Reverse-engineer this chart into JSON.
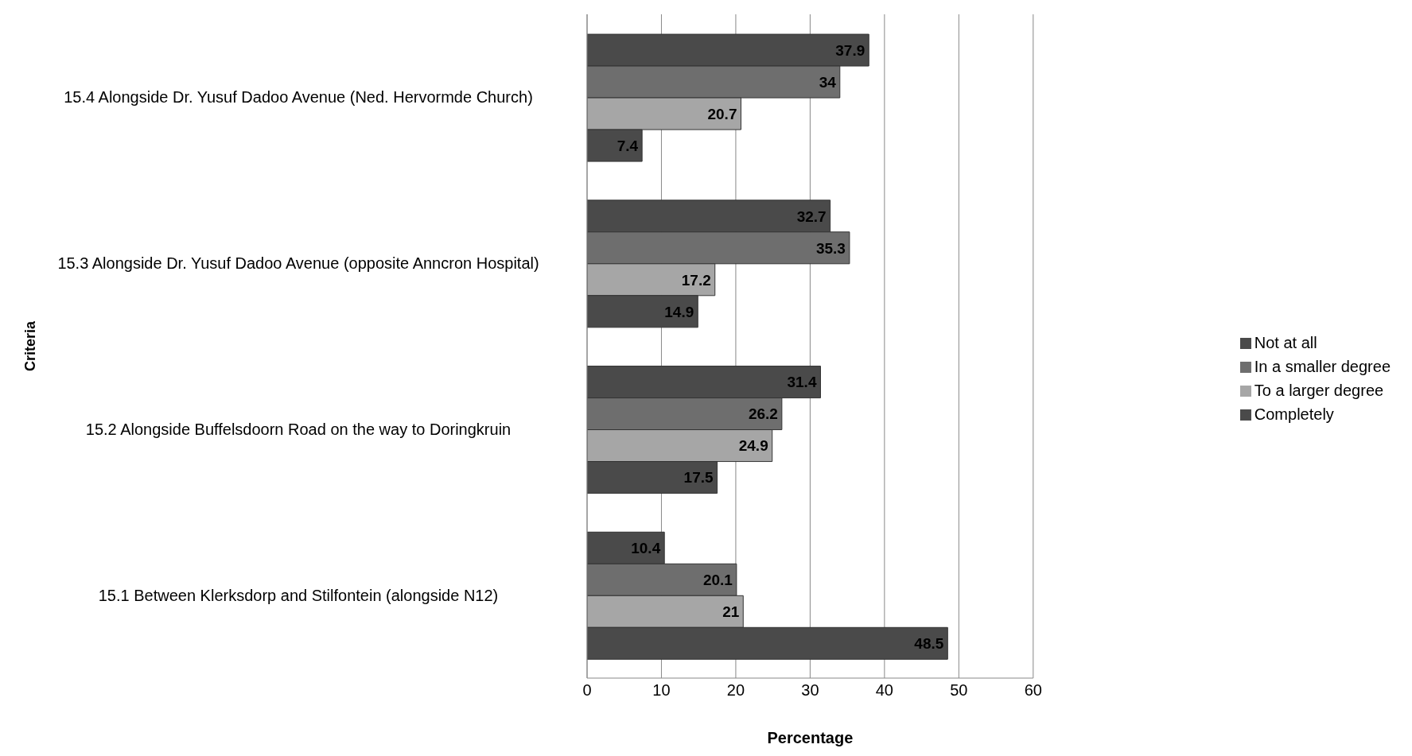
{
  "chart_data": {
    "type": "bar",
    "orientation": "horizontal",
    "xlabel": "Percentage",
    "ylabel": "Criteria",
    "categories": [
      "15.4  Alongside Dr. Yusuf Dadoo Avenue (Ned. Hervormde Church)",
      "15.3  Alongside Dr. Yusuf Dadoo Avenue (opposite Anncron Hospital)",
      "15.2  Alongside Buffelsdoorn Road on the way to Doringkruin",
      "15.1  Between Klerksdorp and Stilfontein (alongside N12)"
    ],
    "series": [
      {
        "name": "Not at all",
        "color": "#4a4a4a",
        "values": [
          37.9,
          32.7,
          31.4,
          10.4
        ]
      },
      {
        "name": "In a smaller degree",
        "color": "#6e6e6e",
        "values": [
          34,
          35.3,
          26.2,
          20.1
        ]
      },
      {
        "name": "To a larger degree",
        "color": "#a6a6a6",
        "values": [
          20.7,
          17.2,
          24.9,
          21
        ]
      },
      {
        "name": "Completely",
        "color": "#4a4a4a",
        "values": [
          7.4,
          14.9,
          17.5,
          48.5
        ]
      }
    ],
    "xlim": [
      0,
      60
    ],
    "xticks": [
      0,
      10,
      20,
      30,
      40,
      50,
      60
    ],
    "grid": "x",
    "legend": "right",
    "data_labels": true
  }
}
